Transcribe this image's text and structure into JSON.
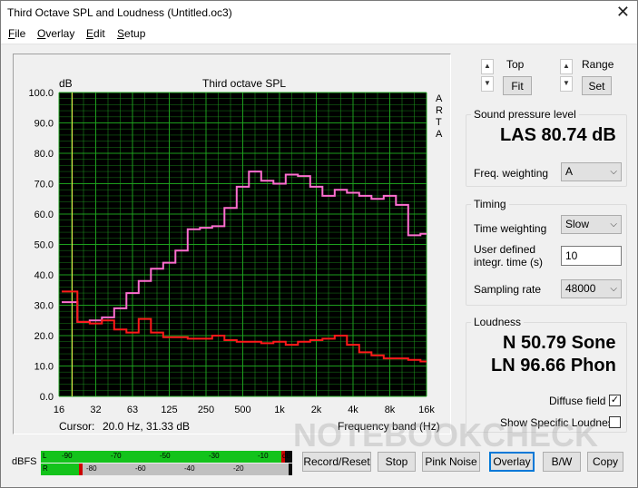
{
  "window": {
    "title": "Third Octave SPL and Loudness (Untitled.oc3)",
    "close_glyph": "✕"
  },
  "menu": [
    {
      "label": "File",
      "underline": "F",
      "rest": "ile"
    },
    {
      "label": "Overlay",
      "underline": "O",
      "rest": "verlay"
    },
    {
      "label": "Edit",
      "underline": "E",
      "rest": "dit"
    },
    {
      "label": "Setup",
      "underline": "S",
      "rest": "etup"
    }
  ],
  "plot": {
    "y_unit": "dB",
    "title": "Third octave SPL",
    "side_text": [
      "A",
      "R",
      "T",
      "A"
    ],
    "cursor_label": "Cursor:",
    "cursor_value": "20.0 Hz, 31.33 dB",
    "x_axis_label": "Frequency band (Hz)"
  },
  "chart_data": {
    "type": "line",
    "title": "Third octave SPL",
    "ylabel": "dB",
    "xlabel": "Frequency band (Hz)",
    "ylim": [
      0,
      100
    ],
    "y_ticks": [
      "0.0",
      "10.0",
      "20.0",
      "30.0",
      "40.0",
      "50.0",
      "60.0",
      "70.0",
      "80.0",
      "90.0",
      "100.0"
    ],
    "x_tick_labels": [
      "16",
      "32",
      "63",
      "125",
      "250",
      "500",
      "1k",
      "2k",
      "4k",
      "8k",
      "16k"
    ],
    "bands": [
      "16",
      "20",
      "25",
      "31.5",
      "40",
      "50",
      "63",
      "80",
      "100",
      "125",
      "160",
      "200",
      "250",
      "315",
      "400",
      "500",
      "630",
      "800",
      "1k",
      "1.25k",
      "1.6k",
      "2k",
      "2.5k",
      "3.15k",
      "4k",
      "5k",
      "6.3k",
      "8k",
      "10k",
      "12.5k",
      "16k"
    ],
    "grid": true,
    "background": "#000000",
    "grid_color": "#1fa51f",
    "series": [
      {
        "color": "#ff6fd0",
        "values": [
          31,
          31,
          24.5,
          25,
          26,
          29,
          34,
          38,
          42,
          44,
          48,
          55,
          55.5,
          56,
          62,
          69,
          74,
          71,
          70,
          73,
          72.5,
          69,
          66,
          68,
          67,
          66,
          65,
          66,
          63,
          53,
          53.5,
          53.5
        ]
      },
      {
        "color": "#ff1a1a",
        "values": [
          34.5,
          34.5,
          24.5,
          24,
          25,
          22,
          21,
          25.5,
          21,
          19.5,
          19.5,
          19,
          19,
          20,
          18.5,
          18,
          18,
          17.5,
          18,
          17,
          18,
          18.5,
          19,
          20,
          17,
          14.5,
          13.5,
          12.5,
          12.5,
          12,
          11.5,
          11.5
        ]
      }
    ]
  },
  "zoom": {
    "top_label": "Top",
    "fit_label": "Fit",
    "range_label": "Range",
    "set_label": "Set",
    "up_glyph": "▲",
    "down_glyph": "▼"
  },
  "spl": {
    "group_title": "Sound pressure level",
    "reading": "LAS 80.74 dB",
    "freq_weighting_label": "Freq. weighting",
    "freq_weighting_value": "A"
  },
  "timing": {
    "group_title": "Timing",
    "time_weighting_label": "Time weighting",
    "time_weighting_value": "Slow",
    "user_time_label_1": "User defined",
    "user_time_label_2": "integr. time (s)",
    "user_time_value": "10",
    "sampling_rate_label": "Sampling rate",
    "sampling_rate_value": "48000"
  },
  "loudness": {
    "group_title": "Loudness",
    "sone_reading": "N 50.79 Sone",
    "phon_reading": "LN 96.66 Phon",
    "diffuse_field_label": "Diffuse field",
    "diffuse_field_checked": true,
    "show_specific_label": "Show Specific Loudness",
    "show_specific_checked": false
  },
  "meter": {
    "label": "dBFS",
    "ch_left": "L",
    "ch_right": "R",
    "ticks": [
      "-90",
      "-80",
      "-70",
      "-60",
      "-50",
      "-40",
      "-30",
      "-20",
      "-10",
      "dB"
    ],
    "left_level_fraction": 1.0,
    "right_level_fraction": 0.155
  },
  "buttons": {
    "record_reset": "Record/Reset",
    "stop": "Stop",
    "pink_noise": "Pink Noise",
    "overlay": "Overlay",
    "bw": "B/W",
    "copy": "Copy"
  },
  "watermark": "NOTEBOOKCHECK",
  "checkmark_glyph": "✓",
  "chevron_glyph": "⌵"
}
